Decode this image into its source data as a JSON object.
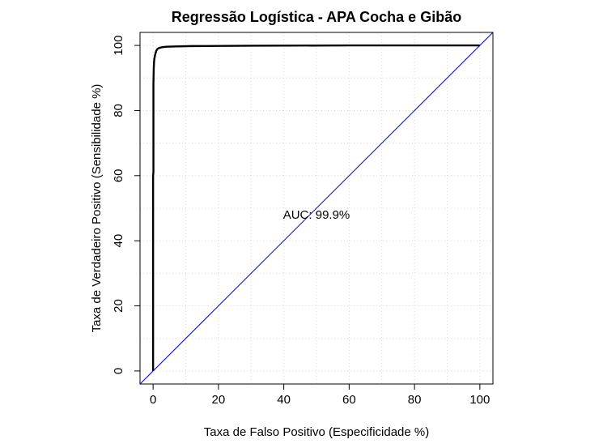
{
  "chart_data": {
    "type": "line",
    "title": "Regressão Logística - APA Cocha e Gibão",
    "xlabel": "Taxa de Falso Positivo (Especificidade %)",
    "ylabel": "Taxa de Verdadeiro Positivo (Sensibilidade %)",
    "xlim": [
      -4,
      104
    ],
    "ylim": [
      -4,
      104
    ],
    "xticks": [
      0,
      20,
      40,
      60,
      80,
      100
    ],
    "yticks": [
      0,
      20,
      40,
      60,
      80,
      100
    ],
    "grid": true,
    "annotations": [
      {
        "text": "AUC: 99.9%",
        "x": 50,
        "y": 48
      }
    ],
    "series": [
      {
        "color": "#000000",
        "x": [
          0,
          0,
          0.1,
          0.1,
          0.2,
          0.3,
          0.4,
          0.6,
          0.8,
          1.0,
          1.3,
          1.8,
          2.5,
          4.0,
          7.0,
          12.0,
          30.0,
          60.0,
          100.0
        ],
        "y": [
          0,
          60,
          61,
          88,
          93,
          95,
          96,
          97,
          97.8,
          98.4,
          98.9,
          99.2,
          99.4,
          99.6,
          99.7,
          99.8,
          99.9,
          100,
          100
        ]
      },
      {
        "color": "#0000cd",
        "x": [
          -4,
          104
        ],
        "y": [
          -4,
          104
        ]
      }
    ]
  }
}
